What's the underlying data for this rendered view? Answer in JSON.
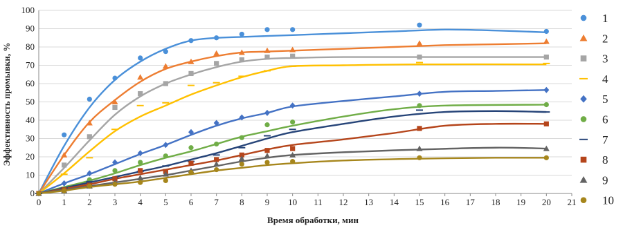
{
  "chart_data": {
    "type": "scatter",
    "xlabel": "Время обработки, мин",
    "ylabel": "Эффективность промывки, %",
    "xlim": [
      0,
      21
    ],
    "ylim": [
      0,
      100
    ],
    "xticks": [
      0,
      1,
      2,
      3,
      4,
      5,
      6,
      7,
      8,
      9,
      10,
      11,
      12,
      13,
      14,
      15,
      16,
      17,
      18,
      19,
      20,
      21
    ],
    "yticks": [
      0,
      10,
      20,
      30,
      40,
      50,
      60,
      70,
      80,
      90,
      100
    ],
    "grid": "horizontal",
    "legend_position": "right",
    "x": [
      0,
      1,
      2,
      3,
      4,
      5,
      6,
      7,
      8,
      9,
      10,
      15,
      20
    ],
    "series": [
      {
        "name": "1",
        "color": "#4a90d9",
        "marker": "circle",
        "values": [
          0,
          32,
          51.5,
          63,
          74,
          77.5,
          83.5,
          85,
          87,
          89.5,
          89.5,
          92,
          88.5
        ],
        "trend": [
          [
            0,
            0
          ],
          [
            1,
            26
          ],
          [
            2,
            47
          ],
          [
            3,
            62
          ],
          [
            4,
            72
          ],
          [
            5,
            79
          ],
          [
            6,
            83.5
          ],
          [
            7,
            85
          ],
          [
            8,
            85.5
          ],
          [
            9,
            86
          ],
          [
            10,
            86.5
          ],
          [
            12,
            87.5
          ],
          [
            14,
            88.5
          ],
          [
            16,
            89.5
          ],
          [
            18,
            89
          ],
          [
            20,
            88
          ]
        ]
      },
      {
        "name": "2",
        "color": "#ed7d31",
        "marker": "triangle",
        "values": [
          0,
          21,
          38.5,
          50,
          63.5,
          69.5,
          72,
          76.5,
          77,
          78,
          78.5,
          82,
          83
        ],
        "trend": [
          [
            0,
            0
          ],
          [
            1,
            21
          ],
          [
            2,
            39
          ],
          [
            3,
            51
          ],
          [
            4,
            61
          ],
          [
            5,
            68
          ],
          [
            6,
            72
          ],
          [
            7,
            75
          ],
          [
            8,
            77
          ],
          [
            9,
            77.5
          ],
          [
            10,
            78
          ],
          [
            12,
            79
          ],
          [
            14,
            80
          ],
          [
            16,
            81
          ],
          [
            18,
            81.5
          ],
          [
            20,
            82
          ]
        ]
      },
      {
        "name": "3",
        "color": "#a5a5a5",
        "marker": "square",
        "values": [
          0,
          15.5,
          31,
          47,
          54.5,
          60,
          65.5,
          71,
          73,
          74.5,
          75,
          74.5,
          74.5
        ],
        "trend": [
          [
            0,
            0
          ],
          [
            1,
            14
          ],
          [
            2,
            29
          ],
          [
            3,
            43
          ],
          [
            4,
            53
          ],
          [
            5,
            60
          ],
          [
            6,
            65
          ],
          [
            7,
            69
          ],
          [
            8,
            72
          ],
          [
            9,
            73.5
          ],
          [
            10,
            74
          ],
          [
            12,
            74.5
          ],
          [
            15,
            74.5
          ],
          [
            20,
            74.5
          ]
        ]
      },
      {
        "name": "4",
        "color": "#ffc000",
        "marker": "dash",
        "values": [
          0,
          10.5,
          19.5,
          35,
          48,
          49.5,
          59,
          60.5,
          64,
          67,
          69.5,
          71.5,
          71
        ],
        "trend": [
          [
            0,
            0
          ],
          [
            1,
            11
          ],
          [
            2,
            23
          ],
          [
            3,
            34
          ],
          [
            4,
            42
          ],
          [
            5,
            48
          ],
          [
            6,
            54
          ],
          [
            7,
            59
          ],
          [
            8,
            63.5
          ],
          [
            9,
            67
          ],
          [
            10,
            69.5
          ],
          [
            12,
            70
          ],
          [
            15,
            70.5
          ],
          [
            20,
            70.5
          ]
        ]
      },
      {
        "name": "5",
        "color": "#4472c4",
        "marker": "diamond",
        "values": [
          0,
          5.5,
          11,
          17,
          22,
          26.5,
          33.5,
          38.5,
          41.5,
          44,
          48,
          54.5,
          56.5
        ],
        "trend": [
          [
            0,
            0
          ],
          [
            1,
            5.5
          ],
          [
            2,
            10.5
          ],
          [
            3,
            16
          ],
          [
            4,
            21.5
          ],
          [
            5,
            26.5
          ],
          [
            6,
            32
          ],
          [
            7,
            37
          ],
          [
            8,
            41
          ],
          [
            9,
            44
          ],
          [
            10,
            47.5
          ],
          [
            12,
            50.5
          ],
          [
            14,
            53
          ],
          [
            16,
            55.5
          ],
          [
            18,
            56
          ],
          [
            20,
            56.5
          ]
        ]
      },
      {
        "name": "6",
        "color": "#70ad47",
        "marker": "circle",
        "values": [
          0,
          2.5,
          7.5,
          12.5,
          17,
          20.5,
          25,
          27,
          30.5,
          37.5,
          39,
          48,
          48.5
        ],
        "trend": [
          [
            0,
            0
          ],
          [
            1,
            3.5
          ],
          [
            2,
            7
          ],
          [
            3,
            11
          ],
          [
            4,
            15.5
          ],
          [
            5,
            19.5
          ],
          [
            6,
            23
          ],
          [
            7,
            27
          ],
          [
            8,
            31
          ],
          [
            9,
            34
          ],
          [
            10,
            37
          ],
          [
            12,
            42
          ],
          [
            14,
            46
          ],
          [
            16,
            48
          ],
          [
            20,
            48.5
          ]
        ]
      },
      {
        "name": "7",
        "color": "#264478",
        "marker": "dash",
        "values": [
          0,
          3,
          6.5,
          8.5,
          12,
          15,
          17.5,
          21,
          25,
          31.5,
          35,
          45.5,
          44.5
        ],
        "trend": [
          [
            0,
            0
          ],
          [
            1,
            3
          ],
          [
            2,
            6
          ],
          [
            3,
            9
          ],
          [
            4,
            12
          ],
          [
            5,
            15
          ],
          [
            6,
            18.5
          ],
          [
            7,
            22
          ],
          [
            8,
            26
          ],
          [
            9,
            30
          ],
          [
            10,
            33.5
          ],
          [
            12,
            38
          ],
          [
            14,
            42
          ],
          [
            16,
            44.5
          ],
          [
            18,
            45
          ],
          [
            20,
            44.5
          ]
        ]
      },
      {
        "name": "8",
        "color": "#b5451b",
        "marker": "square",
        "values": [
          0,
          2,
          4.5,
          8,
          12.5,
          12,
          16.5,
          18.5,
          21,
          23.5,
          24.5,
          35.5,
          38
        ],
        "trend": [
          [
            0,
            0
          ],
          [
            1,
            2.5
          ],
          [
            2,
            5
          ],
          [
            3,
            8
          ],
          [
            4,
            10.5
          ],
          [
            5,
            13
          ],
          [
            6,
            15.5
          ],
          [
            7,
            18
          ],
          [
            8,
            21
          ],
          [
            9,
            24
          ],
          [
            10,
            26.5
          ],
          [
            12,
            29.5
          ],
          [
            14,
            33
          ],
          [
            16,
            37
          ],
          [
            18,
            38
          ],
          [
            20,
            38
          ]
        ]
      },
      {
        "name": "9",
        "color": "#636363",
        "marker": "triangle",
        "values": [
          0,
          1.5,
          4,
          6,
          8.5,
          10.5,
          12.5,
          16,
          19,
          20.5,
          21,
          24.5,
          24.5
        ],
        "trend": [
          [
            0,
            0
          ],
          [
            1,
            2
          ],
          [
            2,
            4
          ],
          [
            3,
            6
          ],
          [
            4,
            8
          ],
          [
            5,
            10
          ],
          [
            6,
            12.5
          ],
          [
            7,
            15
          ],
          [
            8,
            17.5
          ],
          [
            9,
            19.5
          ],
          [
            10,
            21
          ],
          [
            12,
            22.5
          ],
          [
            15,
            24
          ],
          [
            18,
            25
          ],
          [
            20,
            24.5
          ]
        ]
      },
      {
        "name": "10",
        "color": "#a6861c",
        "marker": "circle",
        "values": [
          0,
          1.5,
          4,
          5,
          6,
          7,
          11.5,
          13,
          16,
          17,
          17.5,
          19.5,
          19.5
        ],
        "trend": [
          [
            0,
            0
          ],
          [
            1,
            1.5
          ],
          [
            2,
            3.5
          ],
          [
            3,
            5
          ],
          [
            4,
            6.5
          ],
          [
            5,
            8.5
          ],
          [
            6,
            10.5
          ],
          [
            7,
            12.5
          ],
          [
            8,
            14
          ],
          [
            9,
            15.5
          ],
          [
            10,
            16.5
          ],
          [
            12,
            18
          ],
          [
            15,
            19
          ],
          [
            18,
            19.5
          ],
          [
            20,
            19.5
          ]
        ]
      }
    ]
  }
}
